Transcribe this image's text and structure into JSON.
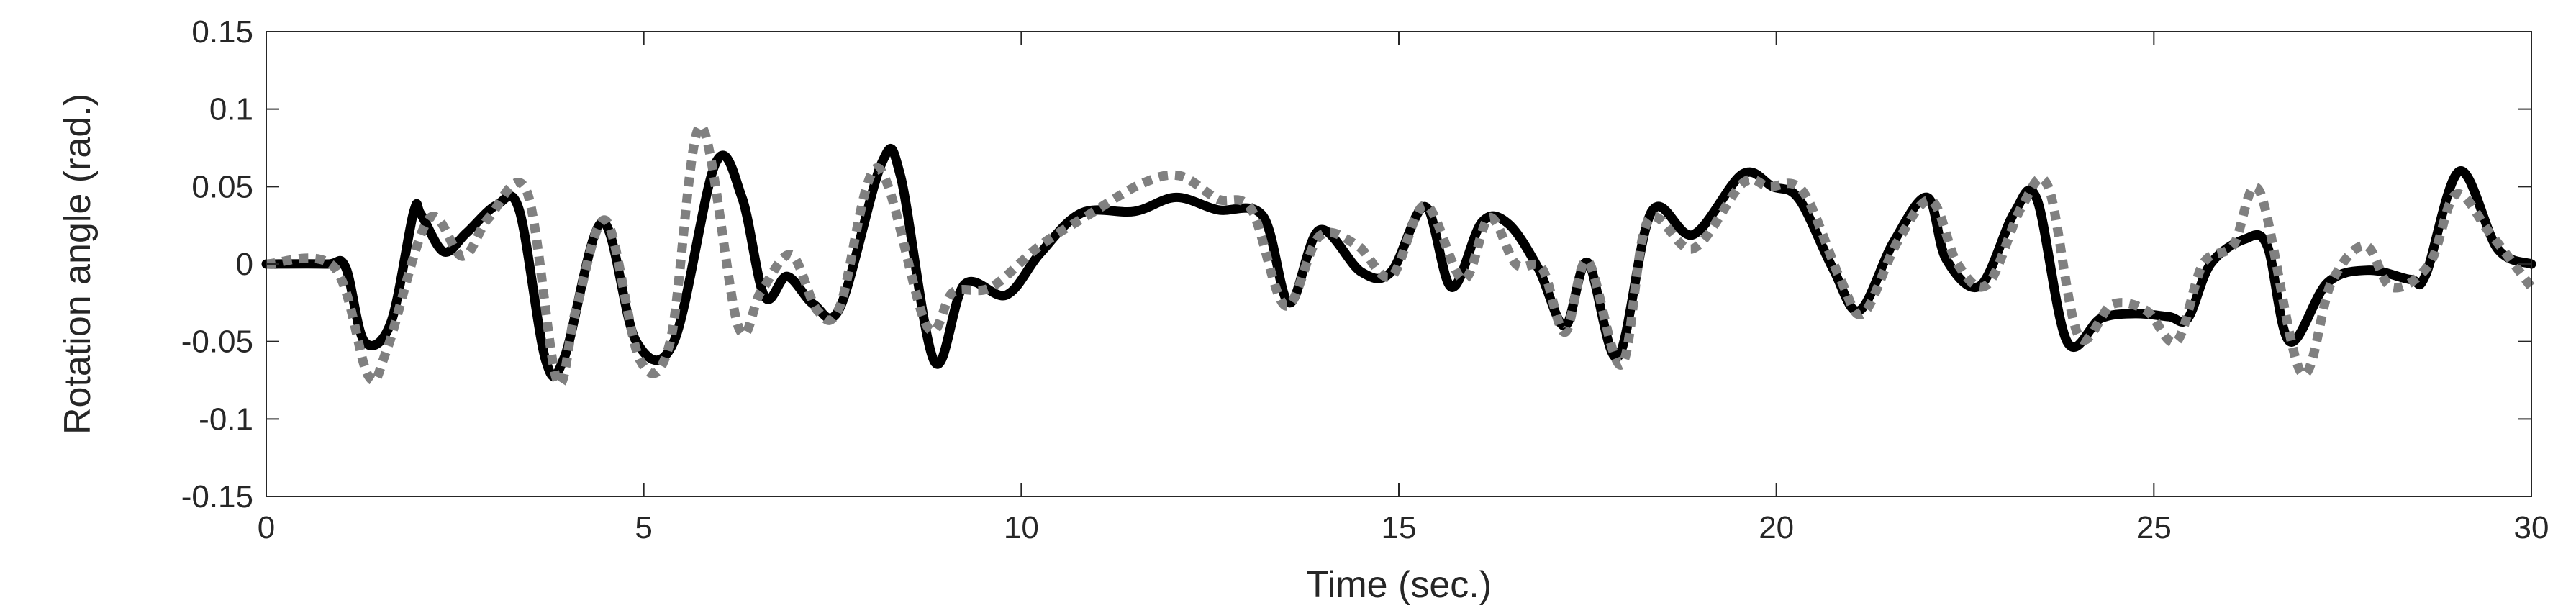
{
  "chart_data": {
    "type": "line",
    "title": "",
    "xlabel": "Time (sec.)",
    "ylabel": "Rotation angle (rad.)",
    "xlim": [
      0,
      30
    ],
    "ylim": [
      -0.15,
      0.15
    ],
    "xticks": [
      0,
      5,
      10,
      15,
      20,
      25,
      30
    ],
    "xtick_labels": [
      "0",
      "5",
      "10",
      "15",
      "20",
      "25",
      "30"
    ],
    "yticks": [
      -0.15,
      -0.1,
      -0.05,
      0,
      0.05,
      0.1,
      0.15
    ],
    "ytick_labels": [
      "-0.15",
      "-0.1",
      "-0.05",
      "0",
      "0.05",
      "0.1",
      "0.15"
    ],
    "grid": false,
    "box": true,
    "series": [
      {
        "style": "solid",
        "color": "#000000",
        "x": [
          0,
          0.8,
          1.05,
          1.3,
          1.65,
          1.95,
          2.05,
          2.35,
          2.65,
          3.05,
          3.35,
          3.7,
          3.95,
          4.45,
          4.9,
          5.4,
          5.95,
          6.3,
          6.6,
          6.9,
          7.25,
          7.6,
          8.15,
          8.4,
          8.85,
          9.25,
          9.8,
          10.25,
          10.8,
          11.5,
          12.05,
          12.6,
          13.2,
          13.55,
          13.95,
          14.5,
          14.9,
          15.35,
          15.7,
          16.1,
          16.45,
          16.85,
          17.2,
          17.5,
          17.9,
          18.35,
          18.9,
          19.55,
          19.95,
          20.3,
          20.75,
          21.1,
          21.55,
          22.0,
          22.25,
          22.7,
          23.15,
          23.45,
          23.85,
          24.3,
          24.75,
          25.2,
          25.45,
          25.75,
          26.2,
          26.5,
          26.8,
          27.3,
          27.85,
          28.4,
          28.6,
          29.05,
          29.55,
          30
        ],
        "y": [
          0,
          0,
          -0.002,
          -0.05,
          -0.038,
          0.033,
          0.032,
          0.008,
          0.02,
          0.038,
          0.035,
          -0.062,
          -0.06,
          0.027,
          -0.05,
          -0.05,
          0.065,
          0.043,
          -0.021,
          -0.008,
          -0.026,
          -0.028,
          0.065,
          0.057,
          -0.063,
          -0.013,
          -0.02,
          0.007,
          0.033,
          0.034,
          0.043,
          0.035,
          0.031,
          -0.025,
          0.022,
          -0.005,
          -0.005,
          0.037,
          -0.015,
          0.027,
          0.026,
          -0.003,
          -0.04,
          0.001,
          -0.06,
          0.034,
          0.019,
          0.058,
          0.05,
          0.042,
          -0.003,
          -0.03,
          0.014,
          0.043,
          0.003,
          -0.014,
          0.033,
          0.042,
          -0.05,
          -0.035,
          -0.032,
          -0.034,
          -0.035,
          0.0,
          0.016,
          0.012,
          -0.05,
          -0.012,
          -0.004,
          -0.01,
          -0.007,
          0.06,
          0.01,
          0.0
        ]
      },
      {
        "style": "dotted",
        "color": "#808080",
        "x": [
          0,
          0.9,
          1.35,
          1.6,
          2.15,
          2.6,
          2.95,
          3.45,
          3.85,
          4.1,
          4.5,
          4.95,
          5.35,
          5.75,
          6.25,
          6.55,
          6.95,
          7.3,
          7.6,
          8.1,
          8.75,
          9.1,
          9.6,
          10.25,
          10.9,
          11.6,
          12.1,
          12.6,
          13.05,
          13.5,
          13.95,
          14.45,
          14.9,
          15.35,
          15.85,
          16.2,
          16.55,
          16.9,
          17.2,
          17.5,
          17.95,
          18.3,
          18.9,
          19.55,
          19.9,
          20.35,
          20.85,
          21.15,
          21.6,
          22.05,
          22.4,
          22.8,
          23.25,
          23.6,
          24.0,
          24.45,
          24.9,
          25.3,
          25.65,
          26.05,
          26.4,
          26.95,
          27.35,
          27.8,
          28.15,
          28.65,
          29.0,
          29.45,
          30
        ],
        "y": [
          0,
          -0.002,
          -0.072,
          -0.055,
          0.029,
          0.005,
          0.03,
          0.047,
          -0.075,
          -0.03,
          0.028,
          -0.062,
          -0.05,
          0.089,
          -0.04,
          -0.018,
          0.006,
          -0.03,
          -0.027,
          0.062,
          -0.04,
          -0.018,
          -0.015,
          0.012,
          0.032,
          0.052,
          0.057,
          0.042,
          0.035,
          -0.027,
          0.018,
          0.012,
          -0.008,
          0.038,
          -0.01,
          0.03,
          0.0,
          -0.003,
          -0.044,
          0.002,
          -0.065,
          0.028,
          0.01,
          0.052,
          0.05,
          0.047,
          -0.01,
          -0.032,
          0.014,
          0.041,
          0.0,
          -0.013,
          0.037,
          0.05,
          -0.046,
          -0.026,
          -0.03,
          -0.05,
          0.0,
          0.012,
          0.047,
          -0.07,
          -0.012,
          0.012,
          -0.015,
          0.0,
          0.045,
          0.02,
          -0.015
        ]
      }
    ]
  }
}
